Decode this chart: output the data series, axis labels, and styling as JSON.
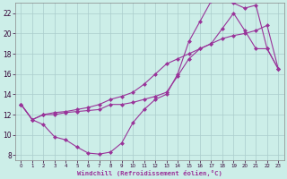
{
  "xlabel": "Windchill (Refroidissement éolien,°C)",
  "bg_color": "#cceee8",
  "grid_color": "#aacccc",
  "line_color": "#993399",
  "xlim": [
    -0.5,
    23.5
  ],
  "ylim": [
    7.5,
    23.0
  ],
  "xticks": [
    0,
    1,
    2,
    3,
    4,
    5,
    6,
    7,
    8,
    9,
    10,
    11,
    12,
    13,
    14,
    15,
    16,
    17,
    18,
    19,
    20,
    21,
    22,
    23
  ],
  "yticks": [
    8,
    10,
    12,
    14,
    16,
    18,
    20,
    22
  ],
  "line1_x": [
    0,
    1,
    2,
    3,
    4,
    5,
    6,
    7,
    8,
    9,
    10,
    11,
    12,
    13,
    14,
    15,
    16,
    17,
    18,
    19,
    20,
    21,
    22,
    23
  ],
  "line1_y": [
    13.0,
    11.5,
    11.0,
    9.8,
    9.5,
    8.8,
    8.2,
    8.1,
    8.3,
    9.2,
    11.2,
    12.5,
    13.5,
    14.0,
    16.0,
    19.2,
    21.2,
    23.2,
    23.4,
    23.0,
    22.5,
    22.8,
    18.5,
    16.5
  ],
  "line2_x": [
    0,
    1,
    2,
    3,
    4,
    5,
    6,
    7,
    8,
    9,
    10,
    11,
    12,
    13,
    14,
    15,
    16,
    17,
    18,
    19,
    20,
    21,
    22,
    23
  ],
  "line2_y": [
    13.0,
    11.5,
    12.0,
    12.0,
    12.2,
    12.3,
    12.4,
    12.5,
    13.0,
    13.0,
    13.2,
    13.5,
    13.8,
    14.2,
    15.8,
    17.5,
    18.5,
    19.0,
    20.5,
    22.0,
    20.3,
    18.5,
    18.5,
    16.5
  ],
  "line3_x": [
    0,
    1,
    2,
    3,
    4,
    5,
    6,
    7,
    8,
    9,
    10,
    11,
    12,
    13,
    14,
    15,
    16,
    17,
    18,
    19,
    20,
    21,
    22,
    23
  ],
  "line3_y": [
    13.0,
    11.5,
    12.0,
    12.2,
    12.3,
    12.5,
    12.7,
    13.0,
    13.5,
    13.8,
    14.2,
    15.0,
    16.0,
    17.0,
    17.5,
    18.0,
    18.5,
    19.0,
    19.5,
    19.8,
    20.0,
    20.3,
    20.8,
    16.5
  ]
}
